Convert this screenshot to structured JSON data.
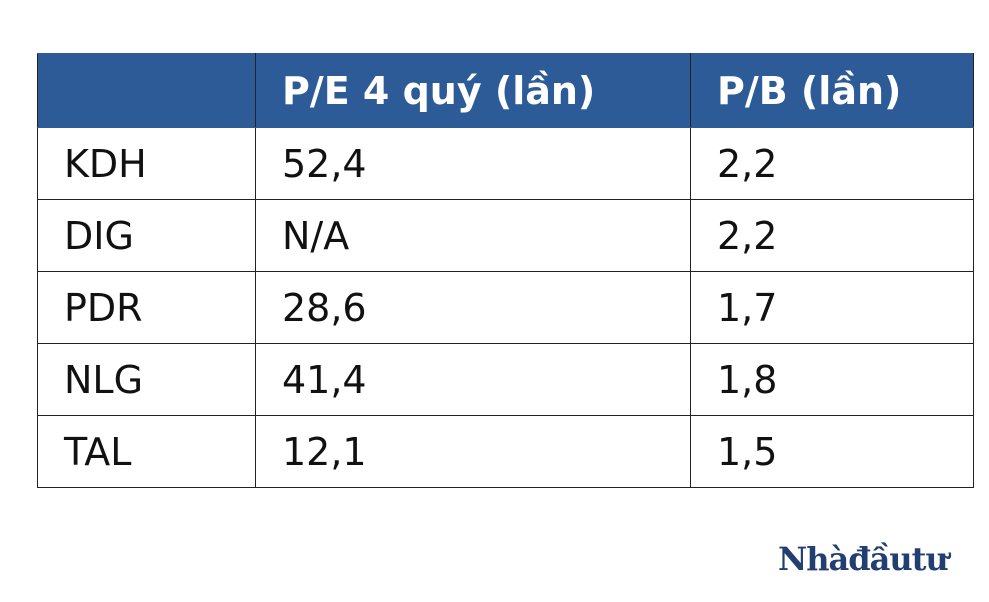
{
  "table": {
    "header": [
      "P/E 4 quý (lần)",
      "P/B (lần)"
    ],
    "rows": [
      [
        "KDH",
        "52,4",
        "2,2"
      ],
      [
        "DIG",
        "N/A",
        "2,2"
      ],
      [
        "PDR",
        "28,6",
        "1,7"
      ],
      [
        "NLG",
        "41,4",
        "1,8"
      ],
      [
        "TAL",
        "12,1",
        "1,5"
      ]
    ]
  },
  "watermark": "Nhàđầutư"
}
